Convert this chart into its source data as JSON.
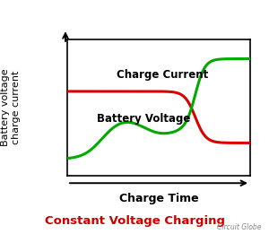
{
  "title": "Constant Voltage Charging",
  "title_color": "#cc0000",
  "watermark": "Circuit Globe",
  "xlabel": "Charge Time",
  "ylabel": "Battery voltage\ncharge current",
  "charge_current_label": "Charge Current",
  "battery_voltage_label": "Battery Voltage",
  "line_color_current": "#dd0000",
  "line_color_voltage": "#00aa00",
  "background_color": "#ffffff",
  "figsize": [
    3.0,
    2.61
  ],
  "dpi": 100
}
